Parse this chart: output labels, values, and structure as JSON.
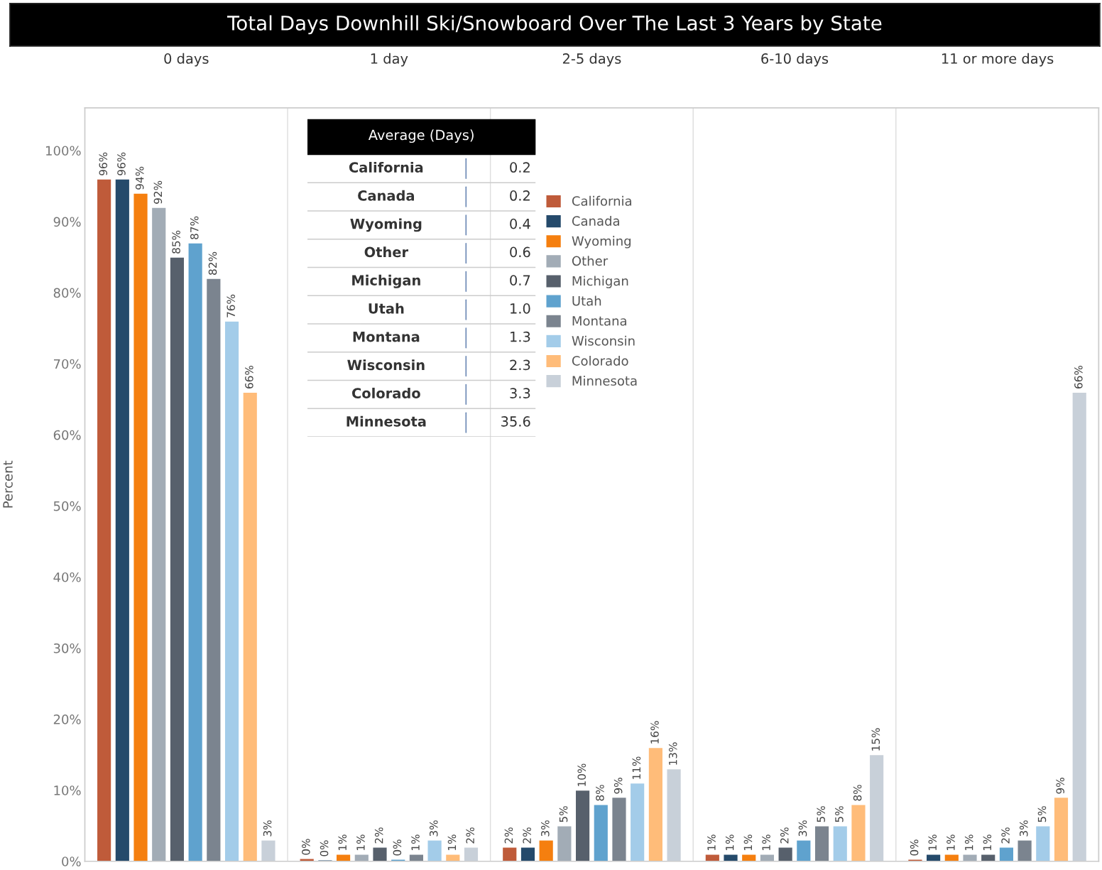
{
  "chart_data": [
    {
      "type": "bar",
      "title": "Total Days Downhill Ski/Snowboard Over The Last 3 Years by State",
      "ylabel": "Percent",
      "categories": [
        "0 days",
        "1 day",
        "2-5 days",
        "6-10 days",
        "11 or more days"
      ],
      "ylim": [
        0,
        106
      ],
      "yticks": [
        {
          "value": 0,
          "label": "0%"
        },
        {
          "value": 10,
          "label": "10%"
        },
        {
          "value": 20,
          "label": "20%"
        },
        {
          "value": 30,
          "label": "30%"
        },
        {
          "value": 40,
          "label": "40%"
        },
        {
          "value": 50,
          "label": "50%"
        },
        {
          "value": 60,
          "label": "60%"
        },
        {
          "value": 70,
          "label": "70%"
        },
        {
          "value": 80,
          "label": "80%"
        },
        {
          "value": 90,
          "label": "90%"
        },
        {
          "value": 100,
          "label": "100%"
        }
      ],
      "grid": false,
      "legend": "top",
      "series": [
        {
          "name": "California",
          "color": "#bf5b3a",
          "values": [
            96,
            0.4,
            2,
            1,
            0.3
          ],
          "value_labels": [
            "96%",
            "0%",
            "2%",
            "1%",
            "0%"
          ]
        },
        {
          "name": "Canada",
          "color": "#254a6b",
          "values": [
            96,
            0.2,
            2,
            1,
            1
          ],
          "value_labels": [
            "96%",
            "0%",
            "2%",
            "1%",
            "1%"
          ]
        },
        {
          "name": "Wyoming",
          "color": "#f57f0f",
          "values": [
            94,
            1,
            3,
            1,
            1
          ],
          "value_labels": [
            "94%",
            "1%",
            "3%",
            "1%",
            "1%"
          ]
        },
        {
          "name": "Other",
          "color": "#a2acb6",
          "values": [
            92,
            1,
            5,
            1,
            1
          ],
          "value_labels": [
            "92%",
            "1%",
            "5%",
            "1%",
            "1%"
          ]
        },
        {
          "name": "Michigan",
          "color": "#57606c",
          "values": [
            85,
            2,
            10,
            2,
            1
          ],
          "value_labels": [
            "85%",
            "2%",
            "10%",
            "2%",
            "1%"
          ]
        },
        {
          "name": "Utah",
          "color": "#5fa2ce",
          "values": [
            87,
            0.3,
            8,
            3,
            2
          ],
          "value_labels": [
            "87%",
            "0%",
            "8%",
            "3%",
            "2%"
          ]
        },
        {
          "name": "Montana",
          "color": "#7b848f",
          "values": [
            82,
            1,
            9,
            5,
            3
          ],
          "value_labels": [
            "82%",
            "1%",
            "9%",
            "5%",
            "3%"
          ]
        },
        {
          "name": "Wisconsin",
          "color": "#a3cce9",
          "values": [
            76,
            3,
            11,
            5,
            5
          ],
          "value_labels": [
            "76%",
            "3%",
            "11%",
            "5%",
            "5%"
          ]
        },
        {
          "name": "Colorado",
          "color": "#ffbc79",
          "values": [
            66,
            1,
            16,
            8,
            9
          ],
          "value_labels": [
            "66%",
            "1%",
            "16%",
            "8%",
            "9%"
          ]
        },
        {
          "name": "Minnesota",
          "color": "#c8d0d9",
          "values": [
            3,
            2,
            13,
            15,
            66
          ],
          "value_labels": [
            "3%",
            "2%",
            "13%",
            "15%",
            "66%"
          ]
        }
      ]
    },
    {
      "type": "other",
      "title": "Average (Days)",
      "categories": [
        "California",
        "Canada",
        "Wyoming",
        "Other",
        "Michigan",
        "Utah",
        "Montana",
        "Wisconsin",
        "Colorado",
        "Minnesota"
      ],
      "values": [
        0.2,
        0.2,
        0.4,
        0.6,
        0.7,
        1.0,
        1.3,
        2.3,
        3.3,
        35.6
      ],
      "value_labels": [
        "0.2",
        "0.2",
        "0.4",
        "0.6",
        "0.7",
        "1.0",
        "1.3",
        "2.3",
        "3.3",
        "35.6"
      ]
    }
  ]
}
